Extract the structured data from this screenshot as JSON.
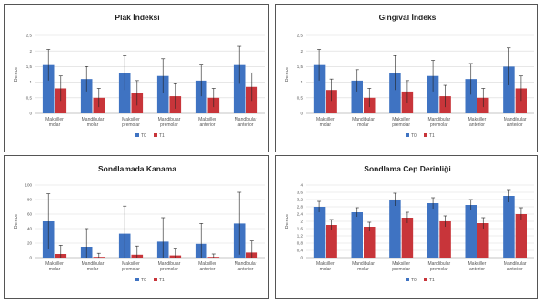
{
  "colors": {
    "t0": "#3f73c2",
    "t1": "#c8353a",
    "grid": "#d9d9d9",
    "axis": "#8c8c8c",
    "error": "#222222"
  },
  "chart_data": [
    {
      "type": "bar",
      "title": "Plak İndeksi",
      "ylabel": "Derece",
      "ylim": [
        0,
        2.5
      ],
      "yticks": [
        0,
        0.5,
        1,
        1.5,
        2,
        2.5
      ],
      "ytick_labels": [
        "0",
        "0,5",
        "1",
        "1,5",
        "2",
        "2,5"
      ],
      "categories": [
        [
          "Maksiller",
          "molar"
        ],
        [
          "Mandibular",
          "molar"
        ],
        [
          "Maksiller",
          "premolar"
        ],
        [
          "Mandibular",
          "premolar"
        ],
        [
          "Maksiller",
          "anterior"
        ],
        [
          "Mandibular",
          "anterior"
        ]
      ],
      "series": [
        {
          "name": "T0",
          "values": [
            1.55,
            1.1,
            1.3,
            1.2,
            1.05,
            1.55
          ],
          "errors": [
            0.5,
            0.4,
            0.55,
            0.55,
            0.5,
            0.6
          ]
        },
        {
          "name": "T1",
          "values": [
            0.8,
            0.5,
            0.65,
            0.55,
            0.5,
            0.85
          ],
          "errors": [
            0.4,
            0.3,
            0.4,
            0.4,
            0.3,
            0.45
          ]
        }
      ],
      "legend": "bottom"
    },
    {
      "type": "bar",
      "title": "Gingival İndeks",
      "ylabel": "Derece",
      "ylim": [
        0,
        2.5
      ],
      "yticks": [
        0,
        0.5,
        1,
        1.5,
        2,
        2.5
      ],
      "ytick_labels": [
        "0",
        "0,5",
        "1",
        "1,5",
        "2",
        "2,5"
      ],
      "categories": [
        [
          "Maksiller",
          "molar"
        ],
        [
          "Mandibular",
          "molar"
        ],
        [
          "Maksiller",
          "premolar"
        ],
        [
          "Mandibular",
          "premolar"
        ],
        [
          "Maksiller",
          "anterior"
        ],
        [
          "Mandibular",
          "anterior"
        ]
      ],
      "series": [
        {
          "name": "T0",
          "values": [
            1.55,
            1.05,
            1.3,
            1.2,
            1.1,
            1.5
          ],
          "errors": [
            0.5,
            0.35,
            0.55,
            0.5,
            0.5,
            0.6
          ]
        },
        {
          "name": "T1",
          "values": [
            0.75,
            0.5,
            0.7,
            0.55,
            0.5,
            0.8
          ],
          "errors": [
            0.35,
            0.3,
            0.35,
            0.35,
            0.3,
            0.4
          ]
        }
      ],
      "legend": "bottom"
    },
    {
      "type": "bar",
      "title": "Sondlamada Kanama",
      "ylabel": "Derece",
      "ylim": [
        0,
        100
      ],
      "yticks": [
        0,
        20,
        40,
        60,
        80,
        100
      ],
      "ytick_labels": [
        "0",
        "20",
        "40",
        "60",
        "80",
        "100"
      ],
      "categories": [
        [
          "Maksiller",
          "molar"
        ],
        [
          "Mandibular",
          "molar"
        ],
        [
          "Maksiller",
          "premolar"
        ],
        [
          "Mandibular",
          "premolar"
        ],
        [
          "Maksiller",
          "anterior"
        ],
        [
          "Mandibular",
          "anterior"
        ]
      ],
      "series": [
        {
          "name": "T0",
          "values": [
            50,
            15,
            33,
            22,
            19,
            47
          ],
          "errors": [
            38,
            25,
            38,
            33,
            28,
            43
          ]
        },
        {
          "name": "T1",
          "values": [
            5,
            1,
            4,
            3,
            1,
            7
          ],
          "errors": [
            12,
            5,
            12,
            10,
            4,
            16
          ]
        }
      ],
      "legend": "bottom"
    },
    {
      "type": "bar",
      "title": "Sondlama Cep Derinliği",
      "ylabel": "Derece",
      "ylim": [
        0,
        4
      ],
      "yticks": [
        0,
        0.4,
        0.8,
        1.2,
        1.6,
        2,
        2.4,
        2.8,
        3.2,
        3.6,
        4
      ],
      "ytick_labels": [
        "0",
        "0,4",
        "0,8",
        "1,2",
        "1,6",
        "2",
        "2,4",
        "2,8",
        "3,2",
        "3,6",
        "4"
      ],
      "categories": [
        [
          "Maksiller",
          "molar"
        ],
        [
          "Mandibular",
          "molar"
        ],
        [
          "Maksiller",
          "premolar"
        ],
        [
          "Mandibular",
          "premolar"
        ],
        [
          "Maksiller",
          "anterior"
        ],
        [
          "Mandibular",
          "anterior"
        ]
      ],
      "series": [
        {
          "name": "T0",
          "values": [
            2.8,
            2.5,
            3.2,
            3.0,
            2.9,
            3.4
          ],
          "errors": [
            0.3,
            0.25,
            0.35,
            0.3,
            0.3,
            0.35
          ]
        },
        {
          "name": "T1",
          "values": [
            1.8,
            1.7,
            2.2,
            2.0,
            1.9,
            2.4
          ],
          "errors": [
            0.3,
            0.25,
            0.3,
            0.3,
            0.3,
            0.35
          ]
        }
      ],
      "legend": "bottom"
    }
  ]
}
